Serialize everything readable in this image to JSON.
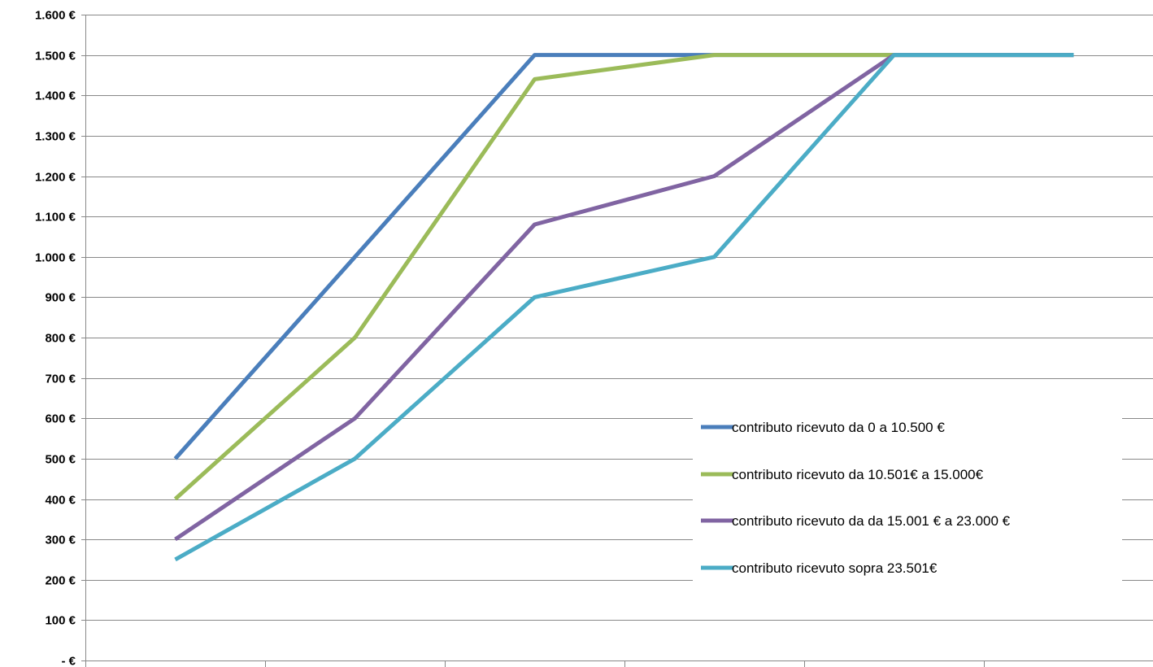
{
  "chart_data": {
    "type": "line",
    "title": "",
    "xlabel": "",
    "ylabel": "",
    "ylim": [
      0,
      1600
    ],
    "y_ticks": [
      {
        "value": 0,
        "label": "- €"
      },
      {
        "value": 100,
        "label": "100 €"
      },
      {
        "value": 200,
        "label": "200 €"
      },
      {
        "value": 300,
        "label": "300 €"
      },
      {
        "value": 400,
        "label": "400 €"
      },
      {
        "value": 500,
        "label": "500 €"
      },
      {
        "value": 600,
        "label": "600 €"
      },
      {
        "value": 700,
        "label": "700 €"
      },
      {
        "value": 800,
        "label": "800 €"
      },
      {
        "value": 900,
        "label": "900 €"
      },
      {
        "value": 1000,
        "label": "1.000 €"
      },
      {
        "value": 1100,
        "label": "1.100 €"
      },
      {
        "value": 1200,
        "label": "1.200 €"
      },
      {
        "value": 1300,
        "label": "1.300 €"
      },
      {
        "value": 1400,
        "label": "1.400 €"
      },
      {
        "value": 1500,
        "label": "1.500 €"
      },
      {
        "value": 1600,
        "label": "1.600 €"
      }
    ],
    "categories": [
      "",
      "",
      "",
      "",
      "",
      ""
    ],
    "grid": true,
    "legend_position": "right",
    "series": [
      {
        "name": "contributo ricevuto da  0 a 10.500 €",
        "color": "#4a7ebb",
        "values": [
          500,
          1000,
          1500,
          1500,
          1500,
          1500
        ]
      },
      {
        "name": "contributo ricevuto da 10.501€ a 15.000€",
        "color": "#9bbb59",
        "values": [
          400,
          800,
          1440,
          1500,
          1500,
          1500
        ]
      },
      {
        "name": "contributo ricevuto da da 15.001 € a 23.000 €",
        "color": "#8064a2",
        "values": [
          300,
          600,
          1080,
          1200,
          1500,
          1500
        ]
      },
      {
        "name": "contributo ricevuto sopra 23.501€",
        "color": "#4bacc6",
        "values": [
          250,
          500,
          900,
          1000,
          1500,
          1500
        ]
      }
    ]
  }
}
